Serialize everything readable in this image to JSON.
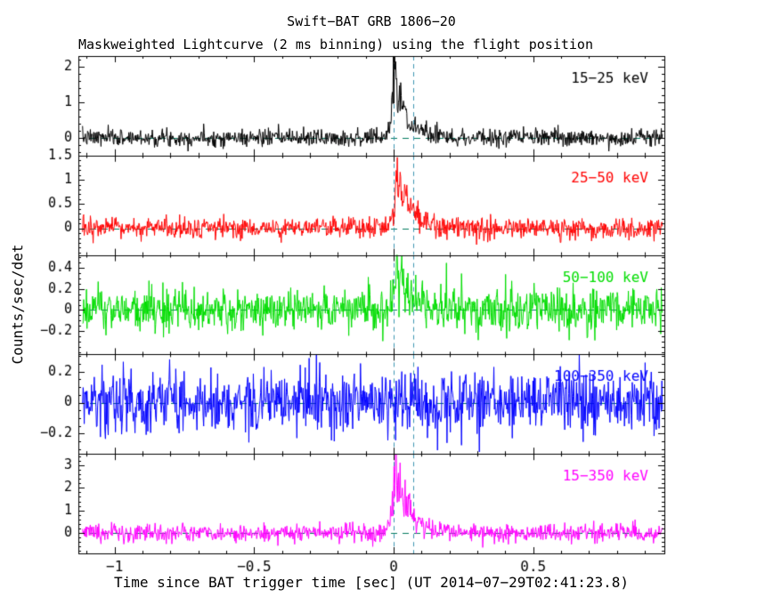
{
  "window": {
    "background": "#ffffff"
  },
  "chart_data": {
    "type": "line",
    "title": "Swift−BAT GRB 1806−20",
    "subtitle": "Maskweighted Lightcurve (2 ms binning) using the flight position",
    "xlabel": "Time since BAT trigger time [sec] (UT 2014−07−29T02:41:23.8)",
    "ylabel": "Counts/sec/det",
    "xlim": [
      -1.13,
      0.97
    ],
    "data_x": [
      -1.115,
      0.963
    ],
    "xticks": [
      -1,
      -0.5,
      0,
      0.5
    ],
    "xtick_labels": [
      "−1",
      "−0.5",
      "0",
      "0.5"
    ],
    "x_minor": 0.1,
    "n_points": 1040,
    "bin_ms": 2,
    "grid": false,
    "zero_line_color": "#007a5e",
    "marker_line_color": "#3d95b0",
    "marker_x": [
      0.0,
      0.07
    ],
    "panels": [
      {
        "label": "15−25 keV",
        "color": "#000000",
        "ylim": [
          -0.5,
          2.3
        ],
        "yticks": [
          0,
          1,
          2
        ],
        "ytick_labels": [
          "0",
          "1",
          "2"
        ],
        "ytick_minor": 0.2,
        "noise_sigma": 0.12,
        "burst_amp": 2.3,
        "burst_t0": 0.0,
        "burst_rise": 0.008,
        "burst_decay": 0.04,
        "seed": 7
      },
      {
        "label": "25−50 keV",
        "color": "#ff0000",
        "ylim": [
          -0.55,
          1.5
        ],
        "yticks": [
          0,
          0.5,
          1,
          1.5
        ],
        "ytick_labels": [
          "0",
          "0.5",
          "1",
          "1.5"
        ],
        "ytick_minor": 0.1,
        "noise_sigma": 0.11,
        "burst_amp": 1.35,
        "burst_t0": 0.01,
        "burst_rise": 0.01,
        "burst_decay": 0.045,
        "seed": 13
      },
      {
        "label": "50−100 keV",
        "color": "#00dd00",
        "ylim": [
          -0.42,
          0.52
        ],
        "yticks": [
          -0.2,
          0,
          0.2,
          0.4
        ],
        "ytick_labels": [
          "−0.2",
          "0",
          "0.2",
          "0.4"
        ],
        "ytick_minor": 0.05,
        "noise_sigma": 0.105,
        "burst_amp": 0.42,
        "burst_t0": 0.01,
        "burst_rise": 0.012,
        "burst_decay": 0.05,
        "seed": 21
      },
      {
        "label": "100−350 keV",
        "color": "#0000ff",
        "ylim": [
          -0.33,
          0.31
        ],
        "yticks": [
          -0.2,
          0,
          0.2
        ],
        "ytick_labels": [
          "−0.2",
          "0",
          "0.2"
        ],
        "ytick_minor": 0.05,
        "noise_sigma": 0.1,
        "burst_amp": 0,
        "burst_t0": 0,
        "burst_rise": 0.01,
        "burst_decay": 0.05,
        "seed": 33
      },
      {
        "label": "15−350 keV",
        "color": "#ff00ff",
        "ylim": [
          -0.9,
          3.5
        ],
        "yticks": [
          0,
          1,
          2,
          3
        ],
        "ytick_labels": [
          "0",
          "1",
          "2",
          "3"
        ],
        "ytick_minor": 0.2,
        "noise_sigma": 0.2,
        "burst_amp": 3.4,
        "burst_t0": 0.005,
        "burst_rise": 0.01,
        "burst_decay": 0.05,
        "seed": 55
      }
    ]
  }
}
